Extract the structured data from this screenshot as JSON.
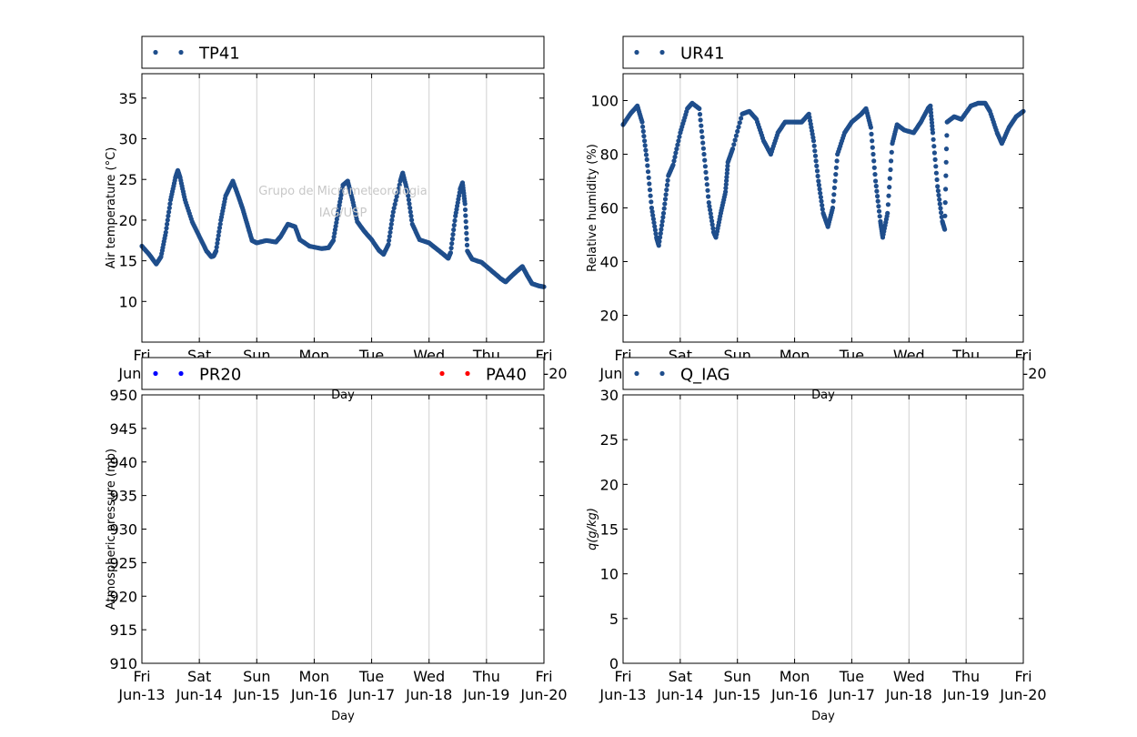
{
  "watermark": {
    "line1": "Grupo de Micrometeorologia",
    "line2": "IAG/USP"
  },
  "chart_data": [
    {
      "type": "scatter",
      "panel": "top-left",
      "ylabel": "Air temperature (°C)",
      "xlabel": "Day",
      "xlim": [
        "2014-06-13",
        "2014-06-20"
      ],
      "ylim": [
        5,
        38
      ],
      "yticks": [
        10,
        15,
        20,
        25,
        30,
        35
      ],
      "xticks": [
        {
          "day": "Fri",
          "date": "Jun-13"
        },
        {
          "day": "Sat",
          "date": "Jun-14"
        },
        {
          "day": "Sun",
          "date": "Jun-15"
        },
        {
          "day": "Mon",
          "date": "Jun-16"
        },
        {
          "day": "Tue",
          "date": "Jun-17"
        },
        {
          "day": "Wed",
          "date": "Jun-18"
        },
        {
          "day": "Thu",
          "date": "Jun-19"
        },
        {
          "day": "Fri",
          "date": "Jun-20"
        }
      ],
      "grid": "vertical",
      "legend_placement": "top",
      "series": [
        {
          "name": "TP41",
          "color": "#1f4e8c",
          "points": [
            [
              "2014-06-13 00:00",
              16.8
            ],
            [
              "2014-06-13 03:00",
              15.8
            ],
            [
              "2014-06-13 06:00",
              14.6
            ],
            [
              "2014-06-13 08:00",
              15.5
            ],
            [
              "2014-06-13 10:00",
              18.5
            ],
            [
              "2014-06-13 12:00",
              22.5
            ],
            [
              "2014-06-13 14:00",
              25.2
            ],
            [
              "2014-06-13 15:00",
              26.1
            ],
            [
              "2014-06-13 16:00",
              25.2
            ],
            [
              "2014-06-13 18:00",
              22.5
            ],
            [
              "2014-06-13 21:00",
              19.8
            ],
            [
              "2014-06-14 00:00",
              18.0
            ],
            [
              "2014-06-14 03:00",
              16.2
            ],
            [
              "2014-06-14 05:00",
              15.5
            ],
            [
              "2014-06-14 06:00",
              15.6
            ],
            [
              "2014-06-14 07:00",
              16.2
            ],
            [
              "2014-06-14 09:00",
              20.0
            ],
            [
              "2014-06-14 11:00",
              23.0
            ],
            [
              "2014-06-14 14:00",
              24.8
            ],
            [
              "2014-06-14 16:00",
              23.2
            ],
            [
              "2014-06-14 18:00",
              21.5
            ],
            [
              "2014-06-14 20:00",
              19.5
            ],
            [
              "2014-06-14 22:00",
              17.5
            ],
            [
              "2014-06-15 00:00",
              17.2
            ],
            [
              "2014-06-15 04:00",
              17.5
            ],
            [
              "2014-06-15 08:00",
              17.3
            ],
            [
              "2014-06-15 10:00",
              18.0
            ],
            [
              "2014-06-15 13:00",
              19.5
            ],
            [
              "2014-06-15 16:00",
              19.2
            ],
            [
              "2014-06-15 18:00",
              17.6
            ],
            [
              "2014-06-15 22:00",
              16.8
            ],
            [
              "2014-06-16 03:00",
              16.5
            ],
            [
              "2014-06-16 06:00",
              16.6
            ],
            [
              "2014-06-16 08:00",
              17.5
            ],
            [
              "2014-06-16 10:00",
              21.0
            ],
            [
              "2014-06-16 12:00",
              24.3
            ],
            [
              "2014-06-16 14:00",
              24.8
            ],
            [
              "2014-06-16 16:00",
              22.5
            ],
            [
              "2014-06-16 18:00",
              19.8
            ],
            [
              "2014-06-16 21:00",
              18.6
            ],
            [
              "2014-06-17 00:00",
              17.6
            ],
            [
              "2014-06-17 03:00",
              16.3
            ],
            [
              "2014-06-17 05:00",
              15.8
            ],
            [
              "2014-06-17 07:00",
              17.0
            ],
            [
              "2014-06-17 09:00",
              21.0
            ],
            [
              "2014-06-17 12:00",
              24.8
            ],
            [
              "2014-06-17 13:00",
              25.8
            ],
            [
              "2014-06-17 15:00",
              23.5
            ],
            [
              "2014-06-17 17:00",
              19.5
            ],
            [
              "2014-06-17 20:00",
              17.6
            ],
            [
              "2014-06-18 00:00",
              17.2
            ],
            [
              "2014-06-18 03:00",
              16.5
            ],
            [
              "2014-06-18 06:00",
              15.8
            ],
            [
              "2014-06-18 08:00",
              15.3
            ],
            [
              "2014-06-18 09:00",
              16.0
            ],
            [
              "2014-06-18 11:00",
              20.5
            ],
            [
              "2014-06-18 13:00",
              23.8
            ],
            [
              "2014-06-18 14:00",
              24.6
            ],
            [
              "2014-06-18 15:00",
              22.0
            ],
            [
              "2014-06-18 16:00",
              16.2
            ],
            [
              "2014-06-18 18:00",
              15.2
            ],
            [
              "2014-06-18 22:00",
              14.8
            ],
            [
              "2014-06-19 02:00",
              13.8
            ],
            [
              "2014-06-19 06:00",
              12.8
            ],
            [
              "2014-06-19 08:00",
              12.4
            ],
            [
              "2014-06-19 10:00",
              13.0
            ],
            [
              "2014-06-19 13:00",
              13.8
            ],
            [
              "2014-06-19 15:00",
              14.3
            ],
            [
              "2014-06-19 17:00",
              13.2
            ],
            [
              "2014-06-19 19:00",
              12.2
            ],
            [
              "2014-06-19 22:00",
              11.9
            ],
            [
              "2014-06-20 00:00",
              11.8
            ]
          ]
        }
      ]
    },
    {
      "type": "scatter",
      "panel": "top-right",
      "ylabel": "Relative humidity (%)",
      "xlabel": "Day",
      "xlim": [
        "2014-06-13",
        "2014-06-20"
      ],
      "ylim": [
        10,
        110
      ],
      "yticks": [
        20,
        40,
        60,
        80,
        100
      ],
      "grid": "vertical",
      "legend_placement": "top",
      "series": [
        {
          "name": "UR41",
          "color": "#1f4e8c",
          "points": [
            [
              "2014-06-13 00:00",
              91
            ],
            [
              "2014-06-13 03:00",
              95
            ],
            [
              "2014-06-13 06:00",
              98
            ],
            [
              "2014-06-13 08:00",
              92
            ],
            [
              "2014-06-13 10:00",
              78
            ],
            [
              "2014-06-13 12:00",
              60
            ],
            [
              "2014-06-13 14:00",
              49
            ],
            [
              "2014-06-13 15:00",
              46
            ],
            [
              "2014-06-13 17:00",
              58
            ],
            [
              "2014-06-13 19:00",
              72
            ],
            [
              "2014-06-13 21:00",
              76
            ],
            [
              "2014-06-14 00:00",
              88
            ],
            [
              "2014-06-14 03:00",
              97
            ],
            [
              "2014-06-14 05:00",
              99
            ],
            [
              "2014-06-14 08:00",
              97
            ],
            [
              "2014-06-14 10:00",
              80
            ],
            [
              "2014-06-14 12:00",
              62
            ],
            [
              "2014-06-14 14:00",
              51
            ],
            [
              "2014-06-14 15:00",
              49
            ],
            [
              "2014-06-14 17:00",
              58
            ],
            [
              "2014-06-14 19:00",
              66
            ],
            [
              "2014-06-14 20:00",
              77
            ],
            [
              "2014-06-14 22:00",
              82
            ],
            [
              "2014-06-15 02:00",
              95
            ],
            [
              "2014-06-15 05:00",
              96
            ],
            [
              "2014-06-15 08:00",
              93
            ],
            [
              "2014-06-15 11:00",
              85
            ],
            [
              "2014-06-15 14:00",
              80
            ],
            [
              "2014-06-15 17:00",
              88
            ],
            [
              "2014-06-15 20:00",
              92
            ],
            [
              "2014-06-16 00:00",
              92
            ],
            [
              "2014-06-16 03:00",
              92
            ],
            [
              "2014-06-16 06:00",
              95
            ],
            [
              "2014-06-16 08:00",
              85
            ],
            [
              "2014-06-16 10:00",
              70
            ],
            [
              "2014-06-16 12:00",
              58
            ],
            [
              "2014-06-16 14:00",
              53
            ],
            [
              "2014-06-16 16:00",
              60
            ],
            [
              "2014-06-16 18:00",
              80
            ],
            [
              "2014-06-16 21:00",
              88
            ],
            [
              "2014-06-17 00:00",
              92
            ],
            [
              "2014-06-17 04:00",
              95
            ],
            [
              "2014-06-17 06:00",
              97
            ],
            [
              "2014-06-17 08:00",
              90
            ],
            [
              "2014-06-17 10:00",
              70
            ],
            [
              "2014-06-17 12:00",
              55
            ],
            [
              "2014-06-17 13:00",
              49
            ],
            [
              "2014-06-17 15:00",
              58
            ],
            [
              "2014-06-17 17:00",
              84
            ],
            [
              "2014-06-17 19:00",
              91
            ],
            [
              "2014-06-17 22:00",
              89
            ],
            [
              "2014-06-18 02:00",
              88
            ],
            [
              "2014-06-18 05:00",
              92
            ],
            [
              "2014-06-18 08:00",
              97
            ],
            [
              "2014-06-18 09:00",
              98
            ],
            [
              "2014-06-18 10:00",
              88
            ],
            [
              "2014-06-18 12:00",
              68
            ],
            [
              "2014-06-18 14:00",
              55
            ],
            [
              "2014-06-18 15:00",
              52
            ],
            [
              "2014-06-18 16:00",
              92
            ],
            [
              "2014-06-18 19:00",
              94
            ],
            [
              "2014-06-18 22:00",
              93
            ],
            [
              "2014-06-19 02:00",
              98
            ],
            [
              "2014-06-19 05:00",
              99
            ],
            [
              "2014-06-19 08:00",
              99
            ],
            [
              "2014-06-19 10:00",
              96
            ],
            [
              "2014-06-19 13:00",
              88
            ],
            [
              "2014-06-19 15:00",
              84
            ],
            [
              "2014-06-19 18:00",
              90
            ],
            [
              "2014-06-19 21:00",
              94
            ],
            [
              "2014-06-20 00:00",
              96
            ]
          ]
        }
      ]
    },
    {
      "type": "scatter",
      "panel": "bottom-left",
      "ylabel": "Atmospheric pressure (mb)",
      "xlabel": "Day",
      "xlim": [
        "2014-06-13",
        "2014-06-20"
      ],
      "ylim": [
        910,
        950
      ],
      "yticks": [
        910,
        915,
        920,
        925,
        930,
        935,
        940,
        945,
        950
      ],
      "grid": "vertical",
      "legend_placement": "top",
      "series": [
        {
          "name": "PR20",
          "color": "#0000ff",
          "points": []
        },
        {
          "name": "PA40",
          "color": "#ff0000",
          "points": []
        }
      ]
    },
    {
      "type": "scatter",
      "panel": "bottom-right",
      "ylabel": "q(g/kg)",
      "xlabel": "Day",
      "xlim": [
        "2014-06-13",
        "2014-06-20"
      ],
      "ylim": [
        0,
        30
      ],
      "yticks": [
        0,
        5,
        10,
        15,
        20,
        25,
        30
      ],
      "grid": "vertical",
      "legend_placement": "top",
      "series": [
        {
          "name": "Q_IAG",
          "color": "#1f4e8c",
          "points": []
        }
      ]
    }
  ]
}
